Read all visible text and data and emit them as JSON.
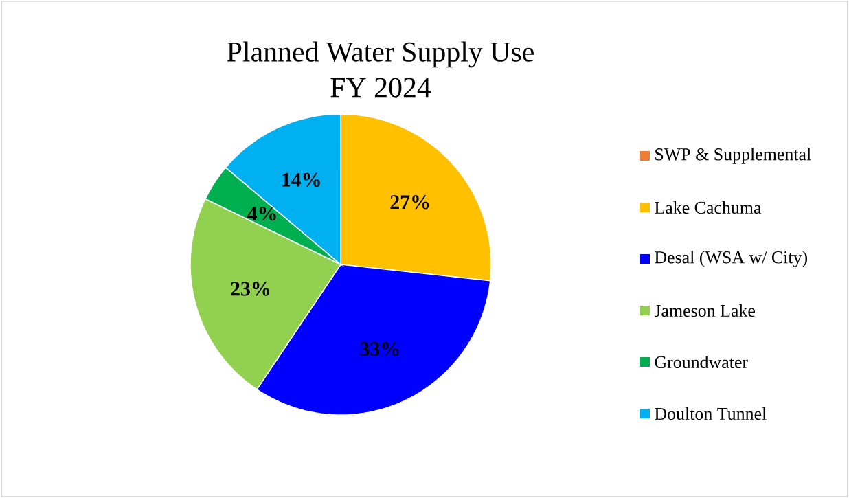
{
  "chart_data": {
    "type": "pie",
    "title": "Planned Water Supply Use\nFY 2024",
    "categories": [
      "SWP & Supplemental",
      "Lake Cachuma",
      "Desal (WSA w/ City)",
      "Jameson Lake",
      "Groundwater",
      "Doulton Tunnel"
    ],
    "values": [
      0,
      27,
      33,
      23,
      4,
      14
    ],
    "value_labels": [
      null,
      "27%",
      "33%",
      "23%",
      "4%",
      "14%"
    ],
    "colors": [
      "#ed7d31",
      "#ffc000",
      "#0000ff",
      "#92d050",
      "#00b050",
      "#00b0f0"
    ],
    "legend": "right"
  }
}
